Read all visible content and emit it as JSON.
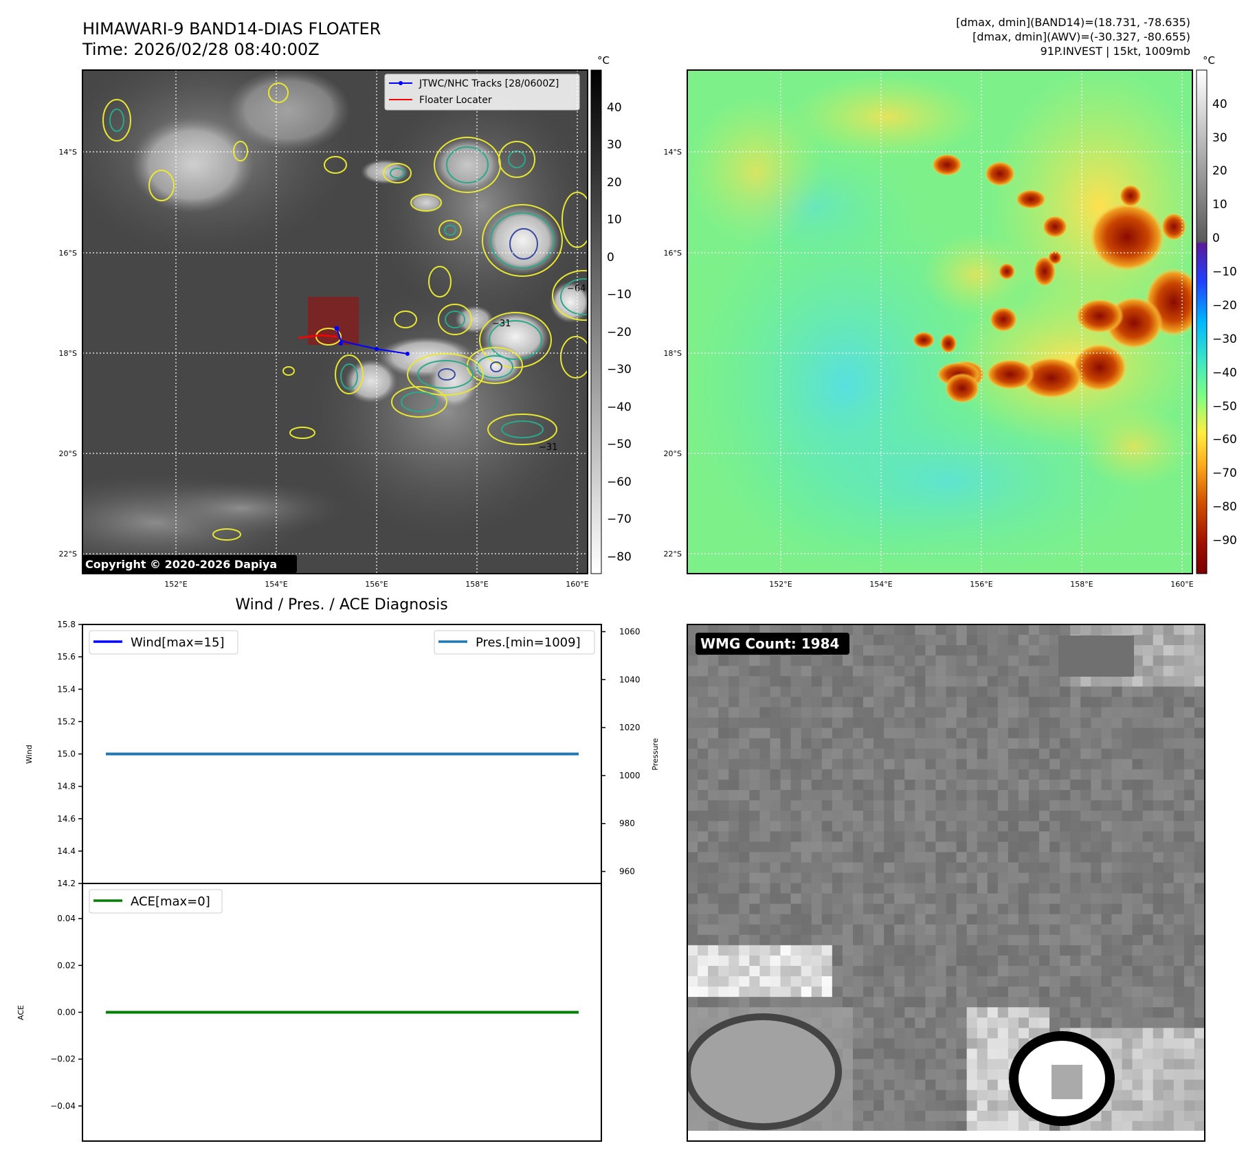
{
  "header": {
    "title": "HIMAWARI-9 BAND14-DIAS FLOATER",
    "time": "Time: 2026/02/28 08:40:00Z",
    "info_line1": "[dmax, dmin](BAND14)=(18.731, -78.635)",
    "info_line2": "[dmax, dmin](AWV)=(-30.327, -80.655)",
    "info_line3": "91P.INVEST | 15kt, 1009mb"
  },
  "ir_panel": {
    "lat_labels": [
      "14°S",
      "16°S",
      "18°S",
      "20°S",
      "22°S"
    ],
    "lon_labels": [
      "152°E",
      "154°E",
      "156°E",
      "158°E",
      "160°E"
    ],
    "legend": [
      {
        "label": "JTWC/NHC Tracks [28/0600Z]",
        "color": "#0000ff"
      },
      {
        "label": "Floater Locater",
        "color": "#ff0000"
      }
    ],
    "copyright": "Copyright © 2020-2026 Dapiya",
    "colorbar_unit": "°C",
    "colorbar_ticks": [
      "40",
      "30",
      "20",
      "10",
      "0",
      "−10",
      "−20",
      "−30",
      "−40",
      "−50",
      "−60",
      "−70",
      "−80"
    ],
    "contour_labels": [
      "−64",
      "−31",
      "−31"
    ]
  },
  "awv_panel": {
    "lat_labels": [
      "14°S",
      "16°S",
      "18°S",
      "20°S",
      "22°S"
    ],
    "lon_labels": [
      "152°E",
      "154°E",
      "156°E",
      "158°E",
      "160°E"
    ],
    "colorbar_unit": "°C",
    "colorbar_ticks": [
      "40",
      "30",
      "20",
      "10",
      "0",
      "−10",
      "−20",
      "−30",
      "−40",
      "−50",
      "−60",
      "−70",
      "−80",
      "−90"
    ]
  },
  "wmg_panel": {
    "count_label": "WMG Count: 1984"
  },
  "chart_data": [
    {
      "type": "line",
      "title": "Wind / Pres. / ACE Diagnosis",
      "ylabel": "Wind",
      "y2label": "Pressure",
      "ylim": [
        14.2,
        15.8
      ],
      "y2lim": [
        955,
        1063
      ],
      "yticks": [
        "15.8",
        "15.6",
        "15.4",
        "15.2",
        "15.0",
        "14.8",
        "14.6",
        "14.4",
        "14.2"
      ],
      "y2ticks": [
        "1060",
        "1040",
        "1020",
        "1000",
        "980",
        "960"
      ],
      "series": [
        {
          "name": "Wind[max=15]",
          "axis": "left",
          "color": "#0000ff",
          "values": [
            15,
            15
          ]
        },
        {
          "name": "Pres.[min=1009]",
          "axis": "right",
          "color": "#1f77b4",
          "values": [
            1009,
            1009
          ]
        }
      ]
    },
    {
      "type": "line",
      "ylabel": "ACE",
      "ylim": [
        -0.055,
        0.055
      ],
      "yticks": [
        "0.04",
        "0.02",
        "0.00",
        "−0.02",
        "−0.04"
      ],
      "series": [
        {
          "name": "ACE[max=0]",
          "color": "#008000",
          "values": [
            0,
            0
          ]
        }
      ]
    }
  ]
}
